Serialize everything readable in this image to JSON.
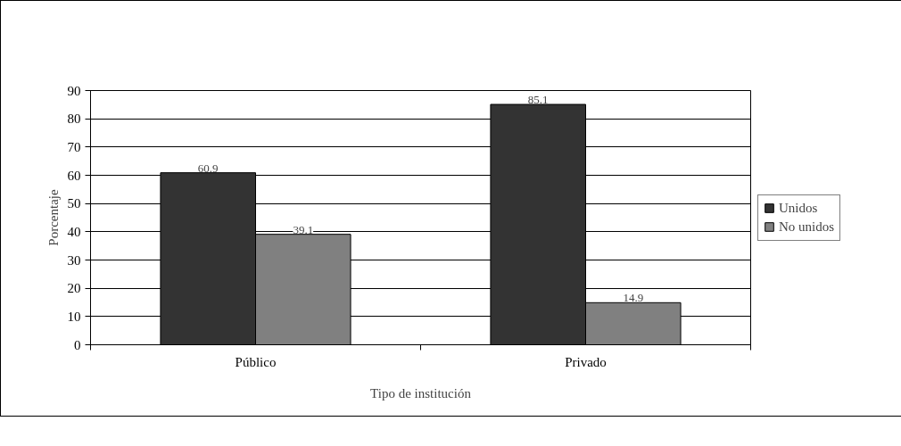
{
  "chart_data": {
    "type": "bar",
    "categories": [
      "Público",
      "Privado"
    ],
    "series": [
      {
        "name": "Unidos",
        "color": "#333333",
        "values": [
          60.9,
          85.1
        ]
      },
      {
        "name": "No unidos",
        "color": "#808080",
        "values": [
          39.1,
          14.9
        ]
      }
    ],
    "xlabel": "Tipo de institución",
    "ylabel": "Porcentaje",
    "ylim": [
      0,
      90
    ],
    "yticks": [
      0,
      10,
      20,
      30,
      40,
      50,
      60,
      70,
      80,
      90
    ],
    "grid": "y",
    "legend": "right",
    "data_labels": true
  }
}
